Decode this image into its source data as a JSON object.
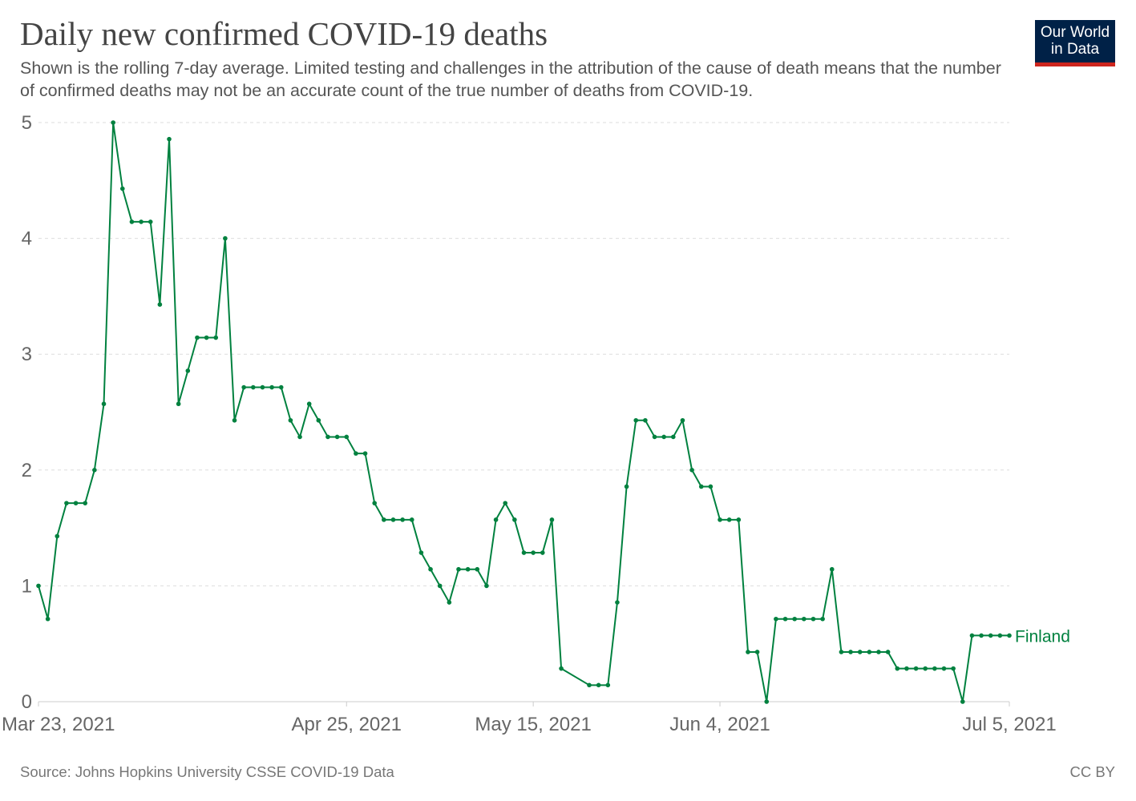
{
  "header": {
    "title": "Daily new confirmed COVID-19 deaths",
    "subtitle": "Shown is the rolling 7-day average. Limited testing and challenges in the attribution of the cause of death means that the number of confirmed deaths may not be an accurate count of the true number of deaths from COVID-19."
  },
  "logo": {
    "line1": "Our World",
    "line2": "in Data",
    "bg_color": "#002147",
    "accent_color": "#ce261e"
  },
  "footer": {
    "source": "Source: Johns Hopkins University CSSE COVID-19 Data",
    "license": "CC BY"
  },
  "chart_data": {
    "type": "line",
    "title": "Daily new confirmed COVID-19 deaths",
    "xlabel": "",
    "ylabel": "",
    "ylim": [
      0,
      5
    ],
    "xlim": [
      "2021-03-23",
      "2021-07-05"
    ],
    "grid": "horizontal dashed",
    "y_ticks": [
      "0",
      "1",
      "2",
      "3",
      "4",
      "5"
    ],
    "x_ticks": [
      {
        "date": "2021-03-23",
        "label": "Mar 23, 2021"
      },
      {
        "date": "2021-04-25",
        "label": "Apr 25, 2021"
      },
      {
        "date": "2021-05-15",
        "label": "May 15, 2021"
      },
      {
        "date": "2021-06-04",
        "label": "Jun 4, 2021"
      },
      {
        "date": "2021-07-05",
        "label": "Jul 5, 2021"
      }
    ],
    "series": [
      {
        "name": "Finland",
        "color": "#00813f",
        "x": [
          "2021-03-23",
          "2021-03-24",
          "2021-03-25",
          "2021-03-26",
          "2021-03-27",
          "2021-03-28",
          "2021-03-29",
          "2021-03-30",
          "2021-03-31",
          "2021-04-01",
          "2021-04-02",
          "2021-04-03",
          "2021-04-04",
          "2021-04-05",
          "2021-04-06",
          "2021-04-07",
          "2021-04-08",
          "2021-04-09",
          "2021-04-10",
          "2021-04-11",
          "2021-04-12",
          "2021-04-13",
          "2021-04-14",
          "2021-04-15",
          "2021-04-16",
          "2021-04-17",
          "2021-04-18",
          "2021-04-19",
          "2021-04-20",
          "2021-04-21",
          "2021-04-22",
          "2021-04-23",
          "2021-04-24",
          "2021-04-25",
          "2021-04-26",
          "2021-04-27",
          "2021-04-28",
          "2021-04-29",
          "2021-04-30",
          "2021-05-01",
          "2021-05-02",
          "2021-05-03",
          "2021-05-04",
          "2021-05-05",
          "2021-05-06",
          "2021-05-07",
          "2021-05-08",
          "2021-05-09",
          "2021-05-10",
          "2021-05-11",
          "2021-05-12",
          "2021-05-13",
          "2021-05-14",
          "2021-05-15",
          "2021-05-16",
          "2021-05-17",
          "2021-05-18",
          "2021-05-21",
          "2021-05-22",
          "2021-05-23",
          "2021-05-24",
          "2021-05-25",
          "2021-05-26",
          "2021-05-27",
          "2021-05-28",
          "2021-05-29",
          "2021-05-30",
          "2021-05-31",
          "2021-06-01",
          "2021-06-02",
          "2021-06-03",
          "2021-06-04",
          "2021-06-05",
          "2021-06-06",
          "2021-06-07",
          "2021-06-08",
          "2021-06-09",
          "2021-06-10",
          "2021-06-11",
          "2021-06-12",
          "2021-06-13",
          "2021-06-14",
          "2021-06-15",
          "2021-06-16",
          "2021-06-17",
          "2021-06-18",
          "2021-06-19",
          "2021-06-20",
          "2021-06-21",
          "2021-06-22",
          "2021-06-23",
          "2021-06-24",
          "2021-06-25",
          "2021-06-26",
          "2021-06-27",
          "2021-06-28",
          "2021-06-29",
          "2021-06-30",
          "2021-07-01",
          "2021-07-02",
          "2021-07-03",
          "2021-07-04",
          "2021-07-05"
        ],
        "values": [
          1.0,
          0.714,
          1.429,
          1.714,
          1.714,
          1.714,
          2.0,
          2.571,
          5.0,
          4.429,
          4.143,
          4.143,
          4.143,
          3.429,
          4.857,
          2.571,
          2.857,
          3.143,
          3.143,
          3.143,
          4.0,
          2.429,
          2.714,
          2.714,
          2.714,
          2.714,
          2.714,
          2.429,
          2.286,
          2.571,
          2.429,
          2.286,
          2.286,
          2.286,
          2.143,
          2.143,
          1.714,
          1.571,
          1.571,
          1.571,
          1.571,
          1.286,
          1.143,
          1.0,
          0.857,
          1.143,
          1.143,
          1.143,
          1.0,
          1.571,
          1.714,
          1.571,
          1.286,
          1.286,
          1.286,
          1.571,
          0.286,
          0.143,
          0.143,
          0.143,
          0.857,
          1.857,
          2.429,
          2.429,
          2.286,
          2.286,
          2.286,
          2.429,
          2.0,
          1.857,
          1.857,
          1.571,
          1.571,
          1.571,
          0.429,
          0.429,
          0.0,
          0.714,
          0.714,
          0.714,
          0.714,
          0.714,
          0.714,
          1.143,
          0.429,
          0.429,
          0.429,
          0.429,
          0.429,
          0.429,
          0.286,
          0.286,
          0.286,
          0.286,
          0.286,
          0.286,
          0.286,
          0.0,
          0.571,
          0.571,
          0.571,
          0.571,
          0.571
        ]
      }
    ]
  }
}
